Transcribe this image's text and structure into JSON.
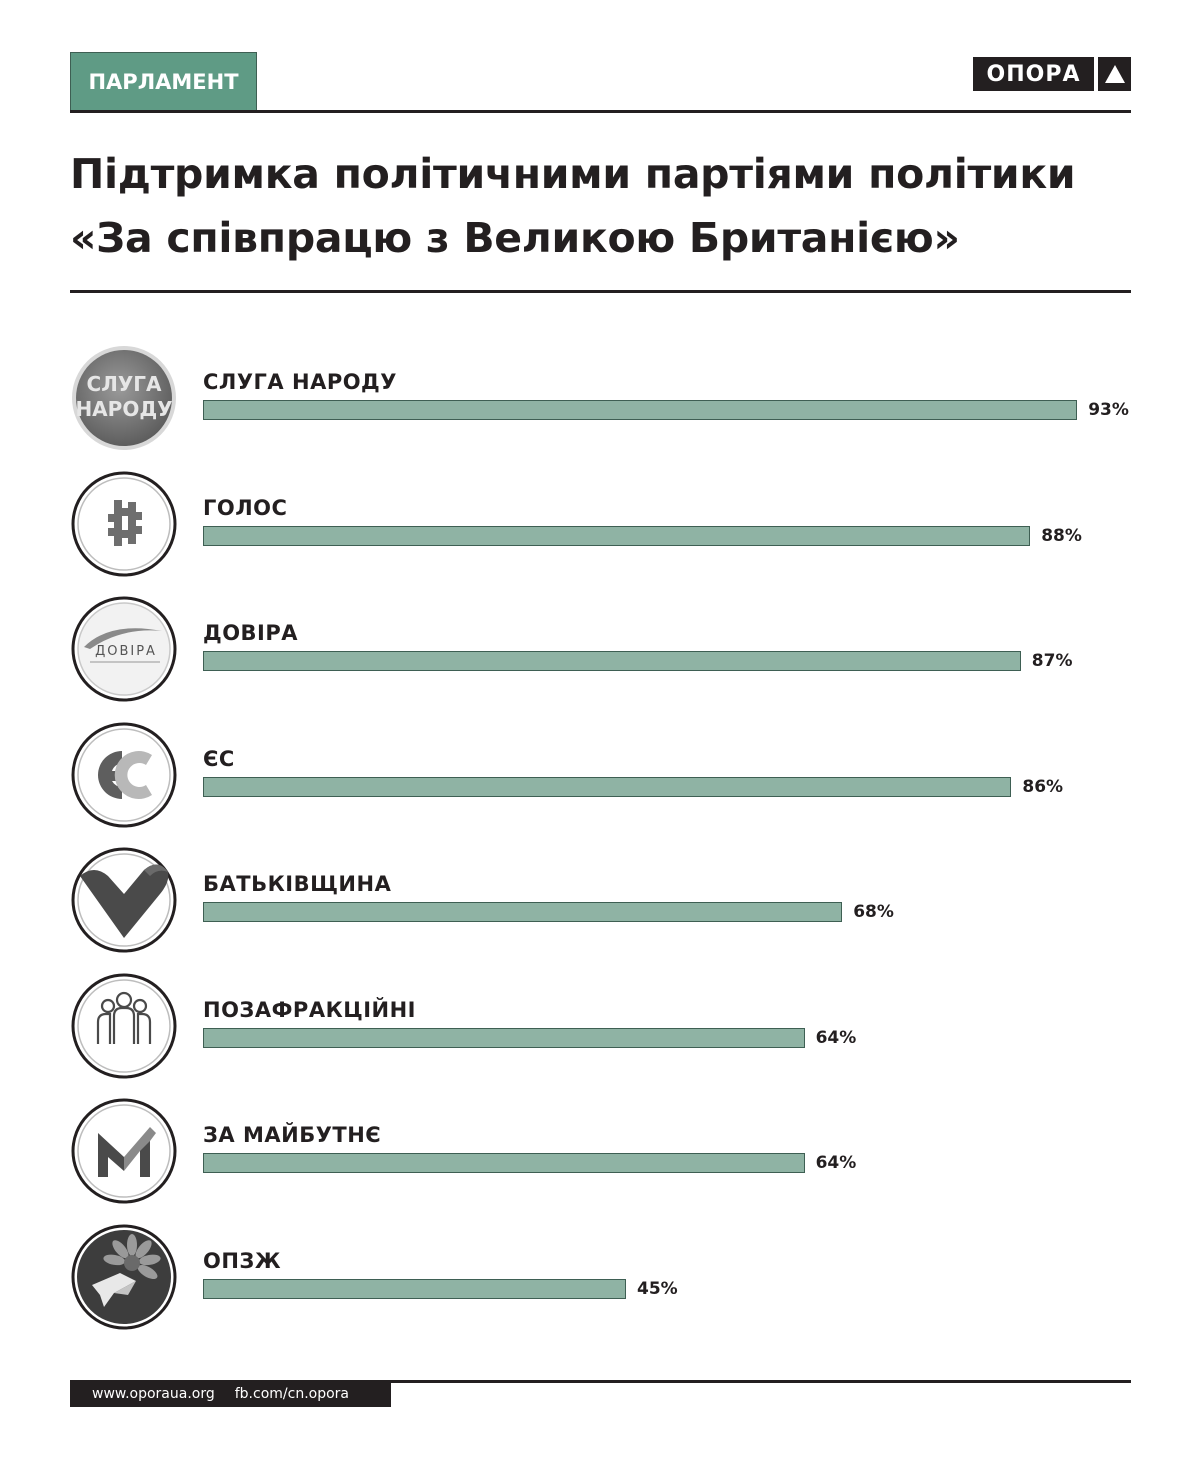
{
  "header": {
    "section_tag": "ПАРЛАМЕНТ",
    "brand": "ОПОРА",
    "title_line1": "Підтримка політичними партіями політики",
    "title_line2": "«За співпрацю з Великою Британією»"
  },
  "colors": {
    "bar_fill": "#8fb3a4",
    "bar_border": "#3e5f53",
    "tag_fill": "#5f9b85",
    "ink": "#231f20"
  },
  "chart_data": {
    "type": "bar",
    "orientation": "horizontal",
    "categories": [
      "СЛУГА НАРОДУ",
      "ГОЛОС",
      "ДОВІРА",
      "ЄС",
      "БАТЬКІВЩИНА",
      "ПОЗАФРАКЦІЙНІ",
      "ЗА МАЙБУТНЄ",
      "ОПЗЖ"
    ],
    "values": [
      93,
      88,
      87,
      86,
      68,
      64,
      64,
      45
    ],
    "value_labels": [
      "93%",
      "88%",
      "87%",
      "86%",
      "68%",
      "64%",
      "64%",
      "45%"
    ],
    "unit": "%",
    "xlim": [
      0,
      100
    ],
    "grid": false,
    "legend": "none"
  },
  "badges": [
    {
      "icon": "sluha-narodu-logo-icon",
      "text_line1": "СЛУГА",
      "text_line2": "НАРОДУ"
    },
    {
      "icon": "holos-logo-icon"
    },
    {
      "icon": "dovira-logo-icon",
      "text": "ДОВІРА"
    },
    {
      "icon": "es-logo-icon",
      "text": "ЄС"
    },
    {
      "icon": "batkivshchyna-heart-icon"
    },
    {
      "icon": "people-group-icon"
    },
    {
      "icon": "za-maibutnie-m-icon"
    },
    {
      "icon": "opzzh-sunflower-dove-icon"
    }
  ],
  "footer": {
    "site": "www.oporaua.org",
    "social": "fb.com/cn.opora"
  }
}
